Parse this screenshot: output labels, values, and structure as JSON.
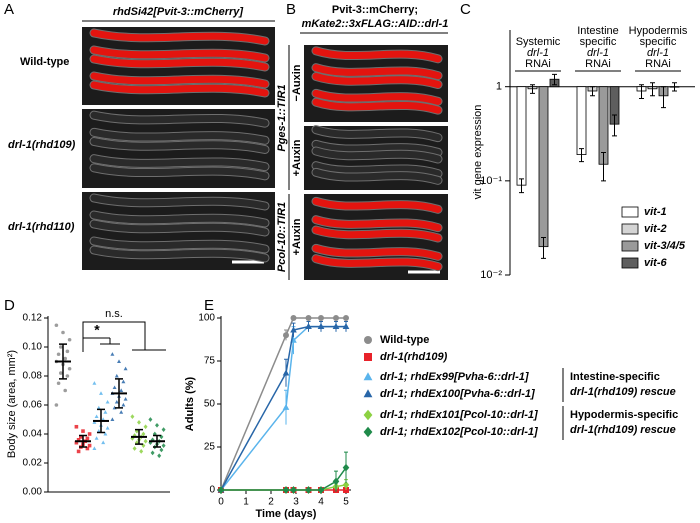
{
  "panel_labels": [
    "A",
    "B",
    "C",
    "D",
    "E"
  ],
  "panel_a": {
    "title": "rhdSi42[Pvit-3::mCherry]",
    "rows": [
      "Wild-type",
      "drl-1(rhd109)",
      "drl-1(rhd110)"
    ]
  },
  "panel_b": {
    "title": [
      "Pvit-3::mCherry;",
      "mKate2::3xFLAG::AID::drl-1"
    ],
    "strains": [
      "Pges-1::TIR1",
      "Pcol-10::TIR1"
    ],
    "conditions": [
      "−Auxin",
      "+Auxin",
      "+Auxin"
    ]
  },
  "chart_data": [
    {
      "type": "bar",
      "log_scale": true,
      "ylabel": "vit gene expression",
      "categories": [
        [
          "Systemic",
          "drl-1",
          "RNAi"
        ],
        [
          "Intestine",
          "specific",
          "drl-1",
          "RNAi"
        ],
        [
          "Hypodermis",
          "specific",
          "drl-1",
          "RNAi"
        ]
      ],
      "series": [
        {
          "name": "vit-1",
          "color": "#ffffff",
          "values": [
            0.09,
            0.19,
            0.9
          ],
          "errors": [
            0.015,
            0.03,
            0.15
          ]
        },
        {
          "name": "vit-2",
          "color": "#d4d4d4",
          "values": [
            0.95,
            0.9,
            0.95
          ],
          "errors": [
            0.1,
            0.1,
            0.15
          ]
        },
        {
          "name": "vit-3/4/5",
          "color": "#9a9a9a",
          "values": [
            0.02,
            0.15,
            0.8
          ],
          "errors": [
            0.005,
            0.05,
            0.2
          ]
        },
        {
          "name": "vit-6",
          "color": "#5e5e5e",
          "values": [
            1.2,
            0.4,
            1.0
          ],
          "errors": [
            0.15,
            0.1,
            0.1
          ]
        }
      ],
      "ylim": [
        0.01,
        4
      ],
      "yticks": [
        1,
        {
          "value": 0.1,
          "label": "10⁻¹"
        },
        {
          "value": 0.01,
          "label": "10⁻²"
        }
      ]
    },
    {
      "type": "scatter",
      "ylabel": "Body size (area, mm²)",
      "categories": [
        null,
        null,
        null,
        null,
        null,
        null
      ],
      "series": [
        {
          "color": "#8c8c8c",
          "marker": "circle",
          "values": [
            0.115,
            0.11,
            0.105,
            0.1,
            0.097,
            0.095,
            0.092,
            0.09,
            0.088,
            0.085,
            0.082,
            0.08,
            0.075,
            0.07,
            0.06
          ],
          "mean": 0.09,
          "sd": 0.012
        },
        {
          "color": "#e8222a",
          "marker": "square",
          "values": [
            0.045,
            0.042,
            0.04,
            0.038,
            0.037,
            0.036,
            0.035,
            0.034,
            0.033,
            0.032,
            0.031,
            0.03,
            0.028
          ],
          "mean": 0.035,
          "sd": 0.004
        },
        {
          "color": "#5ab4ec",
          "marker": "triangle",
          "values": [
            0.075,
            0.068,
            0.062,
            0.058,
            0.055,
            0.052,
            0.05,
            0.048,
            0.046,
            0.044,
            0.042,
            0.04,
            0.037,
            0.034,
            0.03
          ],
          "mean": 0.049,
          "sd": 0.008
        },
        {
          "color": "#2866a8",
          "marker": "triangle",
          "values": [
            0.095,
            0.09,
            0.085,
            0.08,
            0.076,
            0.072,
            0.07,
            0.068,
            0.066,
            0.064,
            0.062,
            0.06,
            0.058,
            0.055,
            0.05
          ],
          "mean": 0.068,
          "sd": 0.01
        },
        {
          "color": "#8cd142",
          "marker": "diamond",
          "values": [
            0.052,
            0.048,
            0.045,
            0.042,
            0.04,
            0.039,
            0.038,
            0.037,
            0.036,
            0.035,
            0.034,
            0.032,
            0.03,
            0.028
          ],
          "mean": 0.038,
          "sd": 0.005
        },
        {
          "color": "#1f8a4a",
          "marker": "diamond",
          "values": [
            0.05,
            0.046,
            0.043,
            0.04,
            0.038,
            0.036,
            0.035,
            0.034,
            0.033,
            0.032,
            0.031,
            0.029,
            0.027,
            0.025
          ],
          "mean": 0.035,
          "sd": 0.004
        }
      ],
      "annotations": [
        "*",
        "n.s."
      ],
      "ylim": [
        0,
        0.12
      ],
      "yticks": [
        {
          "value": 0,
          "label": "0.00"
        },
        {
          "value": 0.02,
          "label": "0.02"
        },
        {
          "value": 0.04,
          "label": "0.04"
        },
        {
          "value": 0.06,
          "label": "0.06"
        },
        {
          "value": 0.08,
          "label": "0.08"
        },
        {
          "value": 0.1,
          "label": "0.10"
        },
        {
          "value": 0.12,
          "label": "0.12"
        }
      ]
    },
    {
      "type": "line",
      "xlabel": "Time (days)",
      "ylabel": "Adults (%)",
      "x": [
        0,
        2.6,
        2.9,
        3.5,
        4,
        4.6,
        5
      ],
      "series": [
        {
          "name": "Wild-type",
          "color": "#8c8c8c",
          "marker": "circle",
          "values": [
            0,
            90,
            100,
            100,
            100,
            100,
            100
          ],
          "errors": [
            0,
            3,
            0,
            0,
            0,
            0,
            0
          ]
        },
        {
          "name": "drl-1(rhd109)",
          "color": "#e8222a",
          "marker": "square",
          "values": [
            0,
            0,
            0,
            0,
            0,
            0,
            0
          ],
          "errors": [
            0,
            0,
            0,
            0,
            0,
            0,
            0
          ]
        },
        {
          "name": "drl-1; rhdEx99[Pvha-6::drl-1]",
          "color": "#5ab4ec",
          "marker": "triangle",
          "values": [
            0,
            48,
            87,
            95,
            95,
            95,
            95
          ],
          "errors": [
            0,
            10,
            8,
            3,
            3,
            3,
            3
          ]
        },
        {
          "name": "drl-1; rhdEx100[Pvha-6::drl-1]",
          "color": "#2866a8",
          "marker": "triangle",
          "values": [
            0,
            68,
            93,
            95,
            95,
            95,
            95
          ],
          "errors": [
            0,
            8,
            4,
            3,
            3,
            3,
            3
          ]
        },
        {
          "name": "drl-1; rhdEx101[Pcol-10::drl-1]",
          "color": "#8cd142",
          "marker": "diamond",
          "values": [
            0,
            0,
            0,
            0,
            0,
            2,
            3
          ],
          "errors": [
            0,
            0,
            0,
            0,
            0,
            2,
            3
          ]
        },
        {
          "name": "drl-1; rhdEx102[Pcol-10::drl-1]",
          "color": "#1f8a4a",
          "marker": "diamond",
          "values": [
            0,
            0,
            0,
            0,
            0,
            5,
            13
          ],
          "errors": [
            0,
            0,
            0,
            0,
            0,
            6,
            9
          ]
        }
      ],
      "annotations": [
        [
          "Intestine-specific",
          "drl-1(rhd109) rescue"
        ],
        [
          "Hypodermis-specific",
          "drl-1(rhd109) rescue"
        ]
      ],
      "xlim": [
        0,
        5.2
      ],
      "xticks": [
        0,
        1,
        2,
        3,
        4,
        5
      ],
      "ylim": [
        0,
        100
      ],
      "yticks": [
        0,
        25,
        50,
        75,
        100
      ]
    }
  ]
}
